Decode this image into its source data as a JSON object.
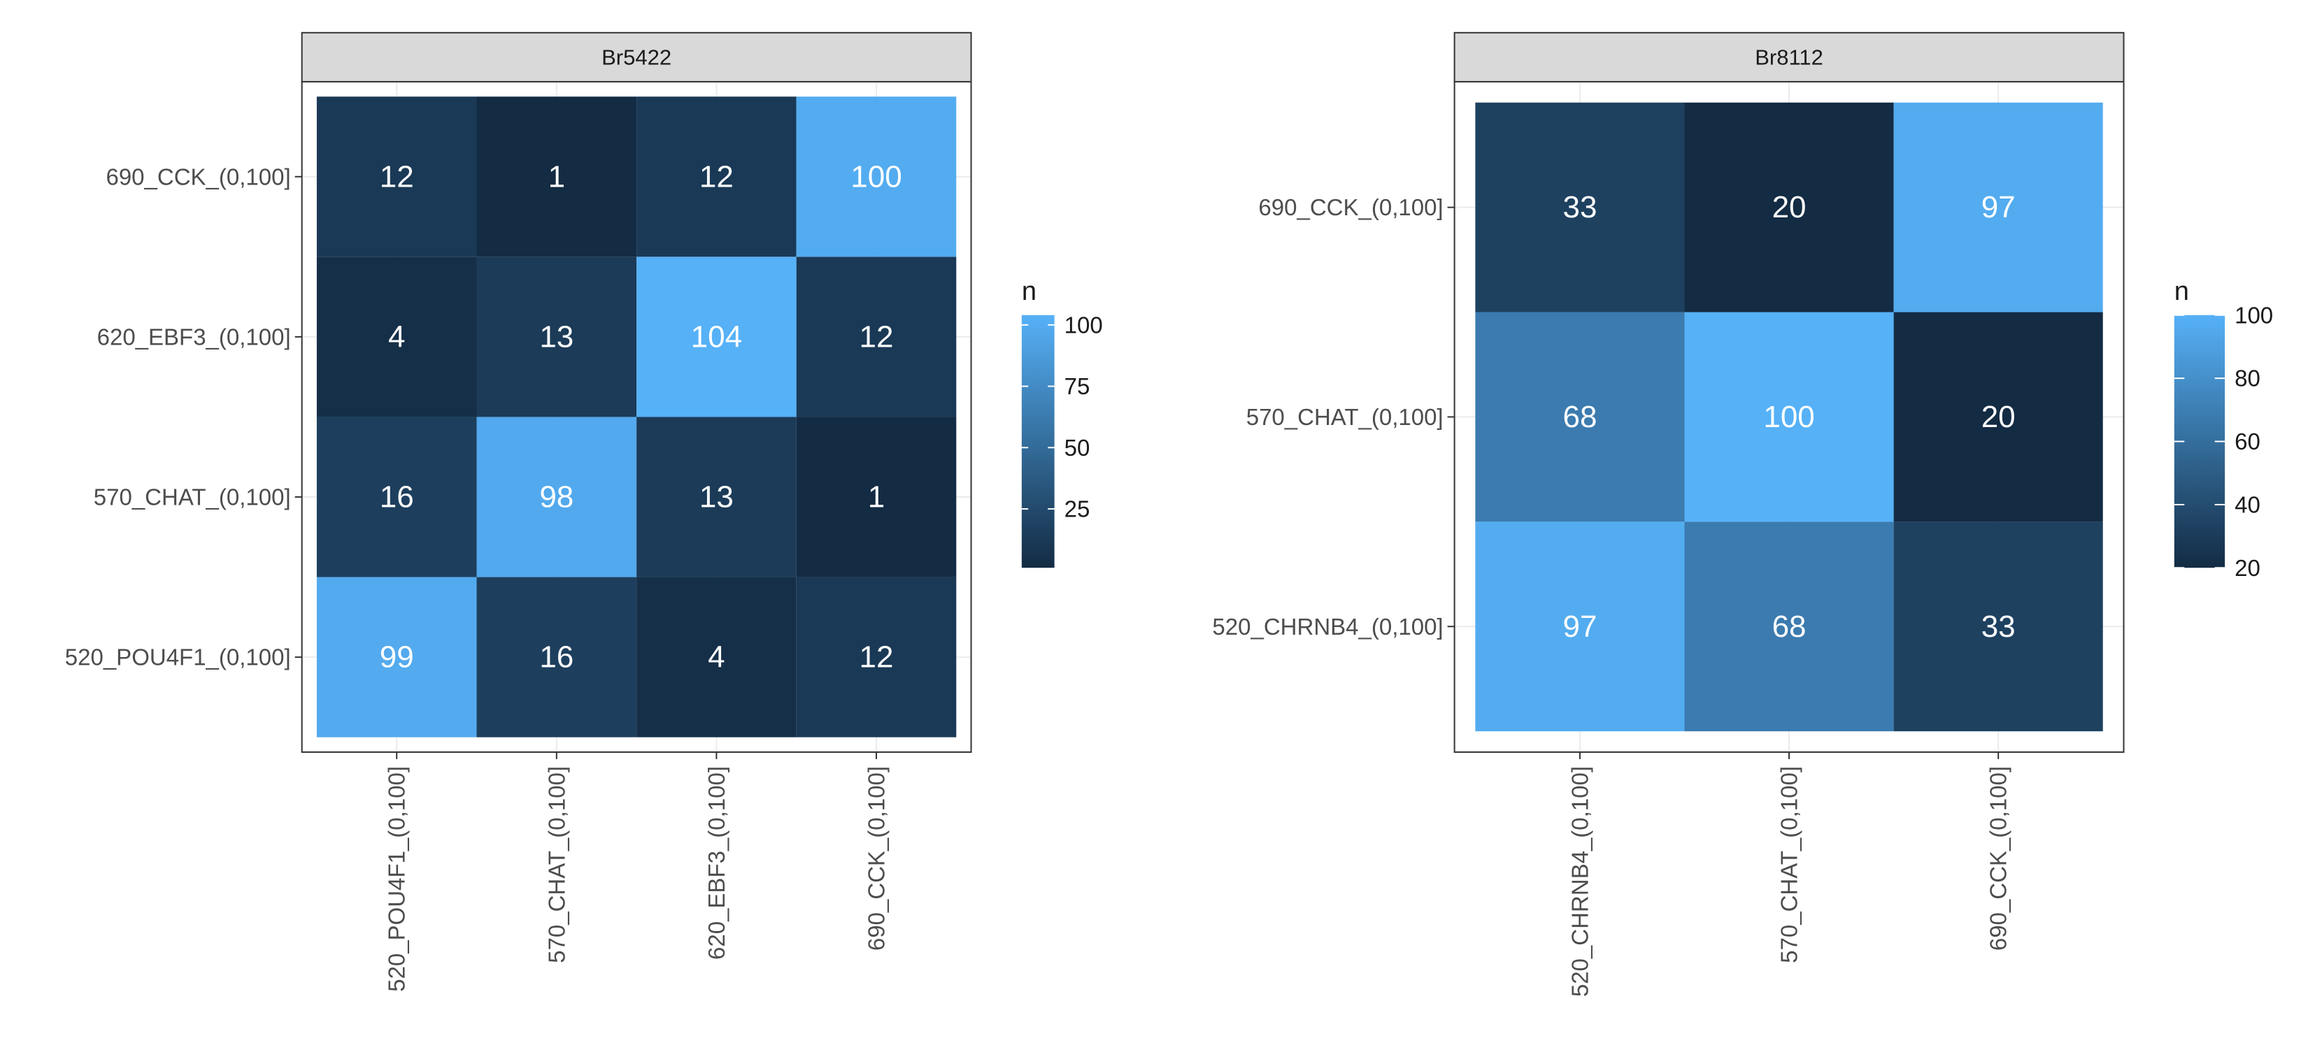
{
  "chart_data": [
    {
      "type": "heatmap",
      "title": "Br5422",
      "x_categories": [
        "520_POU4F1_(0,100]",
        "570_CHAT_(0,100]",
        "620_EBF3_(0,100]",
        "690_CCK_(0,100]"
      ],
      "y_categories": [
        "520_POU4F1_(0,100]",
        "570_CHAT_(0,100]",
        "620_EBF3_(0,100]",
        "690_CCK_(0,100]"
      ],
      "values": [
        [
          99,
          16,
          4,
          12
        ],
        [
          16,
          98,
          13,
          1
        ],
        [
          4,
          13,
          104,
          12
        ],
        [
          12,
          1,
          12,
          100
        ]
      ],
      "legend": {
        "title": "n",
        "range": [
          1,
          104
        ],
        "breaks": [
          25,
          50,
          75,
          100
        ],
        "low_color": "#132B43",
        "high_color": "#56B1F7"
      },
      "grid": true
    },
    {
      "type": "heatmap",
      "title": "Br8112",
      "x_categories": [
        "520_CHRNB4_(0,100]",
        "570_CHAT_(0,100]",
        "690_CCK_(0,100]"
      ],
      "y_categories": [
        "520_CHRNB4_(0,100]",
        "570_CHAT_(0,100]",
        "690_CCK_(0,100]"
      ],
      "values": [
        [
          97,
          68,
          33
        ],
        [
          68,
          100,
          20
        ],
        [
          33,
          20,
          97
        ]
      ],
      "legend": {
        "title": "n",
        "range": [
          20,
          100
        ],
        "breaks": [
          20,
          40,
          60,
          80,
          100
        ],
        "low_color": "#132B43",
        "high_color": "#56B1F7"
      },
      "grid": true
    }
  ]
}
